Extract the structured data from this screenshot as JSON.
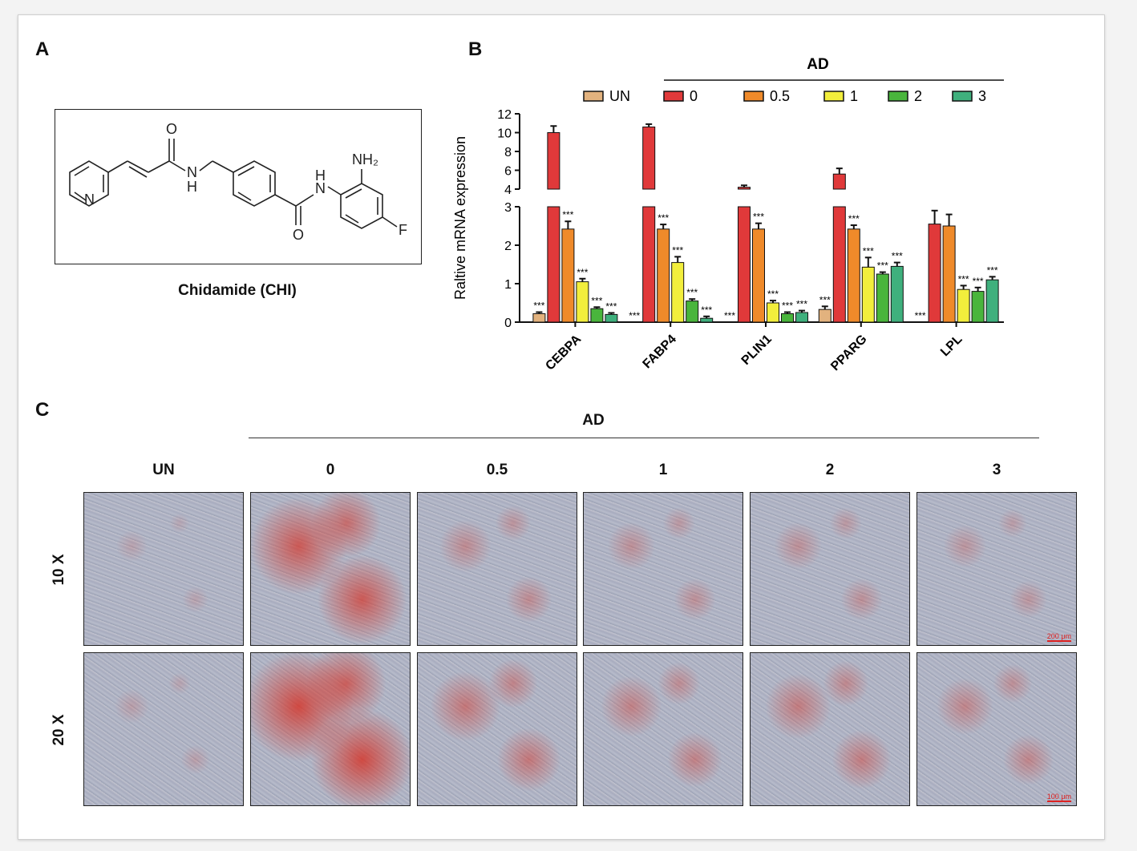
{
  "panels": {
    "a": "A",
    "b": "B",
    "c": "C"
  },
  "structure": {
    "caption": "Chidamide (CHI)",
    "atoms": {
      "o1": "O",
      "n_amide": "N",
      "h_amide": "H",
      "n_pyr": "N",
      "h2": "H",
      "n2": "N",
      "o2": "O",
      "nh2": "NH₂",
      "f": "F"
    }
  },
  "chart_data": {
    "type": "bar",
    "categories": [
      "CEBPA",
      "FABP4",
      "PLIN1",
      "PPARG",
      "LPL"
    ],
    "ylabel": "Raltive mRNA expression",
    "group_label": "AD",
    "axis": {
      "lower": {
        "ylim": [
          0,
          3
        ],
        "ticks": [
          "0",
          "1",
          "2",
          "3"
        ]
      },
      "upper": {
        "ylim": [
          4,
          12
        ],
        "ticks": [
          "4",
          "6",
          "8",
          "10",
          "12"
        ]
      }
    },
    "series": [
      {
        "name": "UN",
        "color": "#e2b27e",
        "values": [
          0.22,
          0.0,
          0.0,
          0.33,
          0.0
        ],
        "errors": [
          0.04,
          0,
          0,
          0.08,
          0
        ],
        "sig": [
          "***",
          "***",
          "***",
          "***",
          "***"
        ]
      },
      {
        "name": "0",
        "color": "#e0393a",
        "values": [
          10.0,
          10.6,
          4.2,
          5.6,
          2.55
        ],
        "errors": [
          0.7,
          0.3,
          0.2,
          0.6,
          0.35
        ],
        "sig": [
          "",
          "",
          "",
          "",
          ""
        ]
      },
      {
        "name": "0.5",
        "color": "#ef8a2a",
        "values": [
          2.42,
          2.42,
          2.42,
          2.42,
          2.5
        ],
        "errors": [
          0.2,
          0.12,
          0.15,
          0.1,
          0.3
        ],
        "sig": [
          "***",
          "***",
          "***",
          "***",
          ""
        ]
      },
      {
        "name": "1",
        "color": "#f2ee3c",
        "values": [
          1.05,
          1.55,
          0.5,
          1.43,
          0.85
        ],
        "errors": [
          0.08,
          0.15,
          0.06,
          0.25,
          0.1
        ],
        "sig": [
          "***",
          "***",
          "***",
          "***",
          "***"
        ]
      },
      {
        "name": "2",
        "color": "#49b53c",
        "values": [
          0.35,
          0.55,
          0.22,
          1.25,
          0.8
        ],
        "errors": [
          0.04,
          0.05,
          0.04,
          0.05,
          0.1
        ],
        "sig": [
          "***",
          "***",
          "***",
          "***",
          "***"
        ]
      },
      {
        "name": "3",
        "color": "#3fb07d",
        "values": [
          0.2,
          0.1,
          0.25,
          1.45,
          1.1
        ],
        "errors": [
          0.04,
          0.05,
          0.05,
          0.1,
          0.08
        ],
        "sig": [
          "***",
          "***",
          "***",
          "***",
          "***"
        ]
      }
    ]
  },
  "micrographs": {
    "group_label": "AD",
    "columns": [
      "UN",
      "0",
      "0.5",
      "1",
      "2",
      "3"
    ],
    "rows": [
      "10 X",
      "20 X"
    ],
    "stain_level": [
      [
        0.02,
        0.75,
        0.25,
        0.2,
        0.2,
        0.15
      ],
      [
        0.05,
        0.9,
        0.45,
        0.35,
        0.4,
        0.3
      ]
    ],
    "scale_bars": [
      "200 μm",
      "100 μm"
    ]
  }
}
